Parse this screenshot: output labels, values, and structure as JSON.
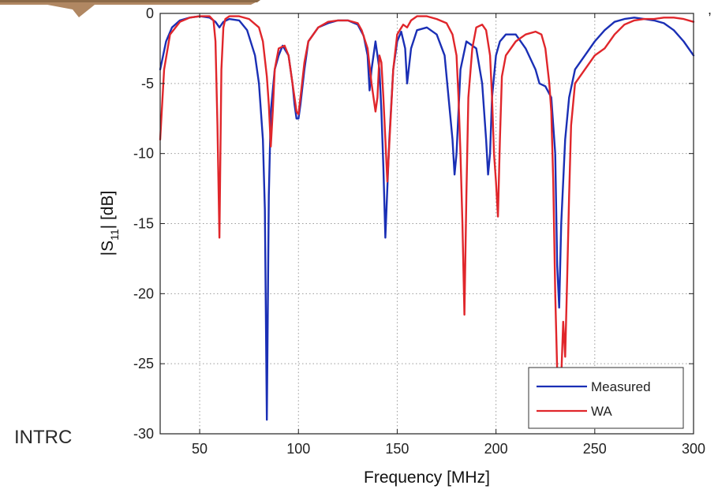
{
  "page": {
    "fragment_text": "INTRC"
  },
  "chart_data": {
    "type": "line",
    "xlabel": "Frequency [MHz]",
    "ylabel_main": "|S",
    "ylabel_sub": "11",
    "ylabel_tail": "| [dB]",
    "xlim": [
      30,
      300
    ],
    "ylim": [
      -30,
      0
    ],
    "xticks": [
      50,
      100,
      150,
      200,
      250,
      300
    ],
    "yticks": [
      0,
      -5,
      -10,
      -15,
      -20,
      -25,
      -30
    ],
    "grid": true,
    "legend_position": "bottom-right",
    "colors": {
      "Measured": "#1a2fb5",
      "WA": "#e0262b"
    },
    "series": [
      {
        "name": "Measured",
        "x": [
          30,
          33,
          36,
          40,
          45,
          50,
          55,
          58,
          60,
          62,
          65,
          70,
          74,
          78,
          80,
          82,
          83,
          84,
          85,
          86,
          88,
          90,
          92,
          95,
          97,
          98,
          99,
          100,
          101,
          103,
          105,
          110,
          115,
          120,
          125,
          130,
          133,
          135,
          136,
          137,
          139,
          141,
          142,
          143,
          144,
          146,
          148,
          150,
          152,
          154,
          155,
          157,
          160,
          165,
          170,
          174,
          176,
          178,
          179,
          180,
          182,
          185,
          190,
          193,
          195,
          196,
          197,
          198,
          200,
          202,
          205,
          210,
          215,
          220,
          222,
          225,
          228,
          230,
          231,
          232,
          233,
          234,
          235,
          237,
          240,
          245,
          250,
          255,
          260,
          265,
          270,
          275,
          280,
          285,
          290,
          295,
          300
        ],
        "y": [
          -4,
          -2,
          -1,
          -0.5,
          -0.3,
          -0.2,
          -0.3,
          -0.6,
          -1,
          -0.6,
          -0.4,
          -0.5,
          -1.2,
          -3,
          -5,
          -9,
          -14,
          -29,
          -13,
          -7,
          -4,
          -3,
          -2.3,
          -3,
          -5,
          -6.5,
          -7.5,
          -7.5,
          -6.5,
          -4,
          -2,
          -1,
          -0.7,
          -0.5,
          -0.5,
          -0.8,
          -1.6,
          -3,
          -5.5,
          -4,
          -2,
          -4,
          -7,
          -11,
          -16,
          -9,
          -4,
          -2,
          -1.3,
          -2.5,
          -5,
          -2.5,
          -1.2,
          -1,
          -1.5,
          -3,
          -6,
          -9,
          -11.5,
          -10,
          -4,
          -2,
          -2.5,
          -5,
          -9,
          -11.5,
          -10,
          -6,
          -3,
          -2,
          -1.5,
          -1.5,
          -2.5,
          -4,
          -5,
          -5.2,
          -6,
          -10,
          -18,
          -21,
          -15,
          -12,
          -9,
          -6,
          -4,
          -3,
          -2,
          -1.2,
          -0.6,
          -0.4,
          -0.3,
          -0.4,
          -0.5,
          -0.7,
          -1.2,
          -2,
          -3
        ]
      },
      {
        "name": "WA",
        "x": [
          30,
          32,
          35,
          40,
          45,
          50,
          55,
          57,
          58,
          59,
          60,
          61,
          62,
          63,
          65,
          70,
          75,
          80,
          82,
          84,
          85,
          86,
          87,
          88,
          90,
          93,
          95,
          97,
          98,
          99,
          100,
          101,
          103,
          105,
          110,
          115,
          120,
          125,
          130,
          132,
          135,
          137,
          139,
          140,
          141,
          142,
          143,
          144,
          145,
          148,
          150,
          153,
          155,
          157,
          160,
          165,
          170,
          175,
          178,
          180,
          181,
          182,
          183,
          184,
          185,
          186,
          188,
          190,
          193,
          195,
          197,
          198,
          199,
          200,
          201,
          202,
          203,
          205,
          210,
          215,
          220,
          223,
          225,
          227,
          228,
          229,
          230,
          231,
          232,
          233,
          234,
          235,
          236,
          237,
          238,
          240,
          245,
          250,
          255,
          260,
          265,
          270,
          275,
          280,
          285,
          290,
          295,
          300
        ],
        "y": [
          -9,
          -4,
          -1.5,
          -0.6,
          -0.3,
          -0.2,
          -0.2,
          -0.5,
          -2,
          -8,
          -16,
          -4,
          -1,
          -0.4,
          -0.2,
          -0.2,
          -0.4,
          -1,
          -2,
          -4.5,
          -6.5,
          -9.5,
          -7,
          -4,
          -2.5,
          -2.3,
          -3,
          -5,
          -6,
          -7,
          -7.2,
          -6,
          -3.5,
          -2,
          -1,
          -0.6,
          -0.5,
          -0.5,
          -0.7,
          -1.2,
          -2.5,
          -5,
          -7,
          -6,
          -3,
          -3.5,
          -6,
          -9,
          -12,
          -4,
          -1.5,
          -0.8,
          -1,
          -0.5,
          -0.2,
          -0.2,
          -0.4,
          -0.7,
          -1.5,
          -3,
          -6,
          -10,
          -15,
          -21.5,
          -13,
          -6,
          -2.5,
          -1,
          -0.8,
          -1.2,
          -3,
          -6,
          -10,
          -12,
          -14.5,
          -9,
          -4.5,
          -3,
          -2,
          -1.5,
          -1.3,
          -1.5,
          -2.5,
          -5,
          -7,
          -12,
          -20,
          -25.5,
          -29,
          -26,
          -22,
          -24.5,
          -19,
          -13,
          -8,
          -5,
          -4,
          -3,
          -2.5,
          -1.5,
          -0.8,
          -0.5,
          -0.4,
          -0.4,
          -0.3,
          -0.3,
          -0.4,
          -0.6
        ]
      }
    ]
  }
}
